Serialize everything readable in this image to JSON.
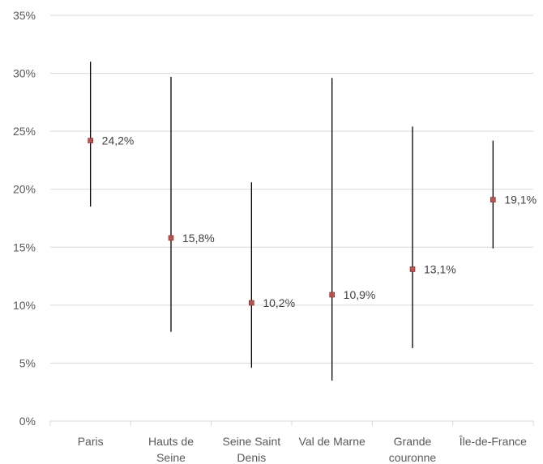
{
  "chart_data": {
    "type": "scatter",
    "title": "",
    "xlabel": "",
    "ylabel": "",
    "ylim": [
      0,
      35
    ],
    "y_ticks": [
      "0%",
      "5%",
      "10%",
      "15%",
      "20%",
      "25%",
      "30%",
      "35%"
    ],
    "y_tick_values": [
      0,
      5,
      10,
      15,
      20,
      25,
      30,
      35
    ],
    "grid": true,
    "legend": "none",
    "marker_color": "#c0504d",
    "error_bar_color": "#000000",
    "categories": [
      [
        "Paris"
      ],
      [
        "Hauts de",
        "Seine"
      ],
      [
        "Seine Saint",
        "Denis"
      ],
      [
        "Val de Marne"
      ],
      [
        "Grande",
        "couronne"
      ],
      [
        "Île-de-France"
      ]
    ],
    "values": [
      24.2,
      15.8,
      10.2,
      10.9,
      13.1,
      19.1
    ],
    "labels": [
      "24,2%",
      "15,8%",
      "10,2%",
      "10,9%",
      "13,1%",
      "19,1%"
    ],
    "error_low": [
      18.5,
      7.7,
      4.6,
      3.5,
      6.3,
      14.9
    ],
    "error_high": [
      31.0,
      29.7,
      20.6,
      29.6,
      25.4,
      24.2
    ]
  }
}
